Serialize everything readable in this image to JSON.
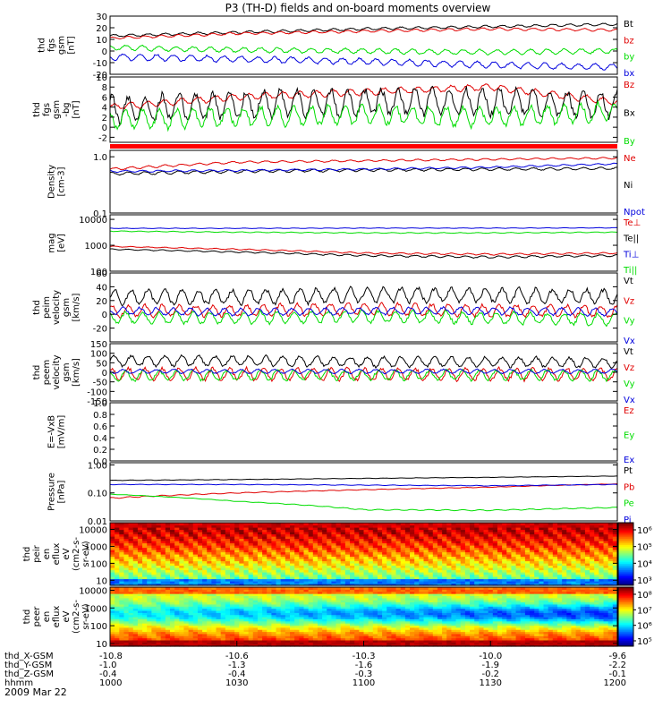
{
  "title": "P3 (TH-D) fields and on-board moments overview",
  "date": "2009 Mar 22",
  "colors": {
    "black": "#000000",
    "red": "#e00000",
    "green": "#00dd00",
    "blue": "#0000dd"
  },
  "chart_data": [
    {
      "type": "line",
      "ylabel": [
        "thd",
        "fgs",
        "gsm",
        "[nT]"
      ],
      "ylim": [
        -20,
        30
      ],
      "ticks": [
        30,
        20,
        10,
        0,
        -10,
        -20
      ],
      "legend_placement": "right",
      "series": [
        {
          "name": "Bt",
          "color": "black",
          "x": [
            1000,
            1030,
            1100,
            1130,
            1200
          ],
          "values": [
            13,
            16,
            19,
            21,
            23
          ],
          "osc": 1
        },
        {
          "name": "bz",
          "color": "red",
          "x": [
            1000,
            1030,
            1100,
            1130,
            1200
          ],
          "values": [
            11,
            15,
            17,
            19,
            18
          ],
          "osc": 1
        },
        {
          "name": "by",
          "color": "green",
          "x": [
            1000,
            1030,
            1100,
            1130,
            1200
          ],
          "values": [
            3,
            1,
            0,
            -1,
            0
          ],
          "osc": 2
        },
        {
          "name": "bx",
          "color": "blue",
          "x": [
            1000,
            1030,
            1100,
            1130,
            1200
          ],
          "values": [
            -5,
            -7,
            -9,
            -12,
            -14
          ],
          "osc": 2.5
        }
      ]
    },
    {
      "type": "line",
      "ylabel": [
        "thd",
        "fgs",
        "gsm",
        "-bg",
        "[nT]"
      ],
      "ylim": [
        -3,
        10
      ],
      "ticks": [
        10,
        8,
        6,
        4,
        2,
        0,
        -2
      ],
      "legend_placement": "right",
      "series": [
        {
          "name": "Bz",
          "color": "red",
          "x": [
            1000,
            1030,
            1100,
            1130,
            1200
          ],
          "values": [
            4,
            6,
            7,
            8,
            5
          ],
          "osc": 0.6
        },
        {
          "name": "Bx",
          "color": "black",
          "x": [
            1000,
            1030,
            1100,
            1130,
            1200
          ],
          "values": [
            3.5,
            4.5,
            5,
            5,
            4.5
          ],
          "osc": 2.5
        },
        {
          "name": "By",
          "color": "green",
          "x": [
            1000,
            1030,
            1100,
            1130,
            1200
          ],
          "values": [
            1.5,
            2,
            2.5,
            2,
            3
          ],
          "osc": 1.8
        }
      ]
    },
    {
      "type": "line",
      "ylabel": [
        "Density",
        "[cm-3]"
      ],
      "scale": "log",
      "ylim": [
        0.1,
        1.3
      ],
      "ticks": [
        1.0,
        0.1
      ],
      "tick_labels": [
        "1.0",
        "0.1"
      ],
      "legend_placement": "right",
      "series": [
        {
          "name": "Ne",
          "color": "red",
          "x": [
            1000,
            1030,
            1100,
            1130,
            1200
          ],
          "values": [
            0.6,
            0.8,
            0.85,
            0.9,
            0.95
          ],
          "osc": 0.03
        },
        {
          "name": "Ni",
          "color": "black",
          "x": [
            1000,
            1030,
            1100,
            1130,
            1200
          ],
          "values": [
            0.5,
            0.55,
            0.58,
            0.6,
            0.62
          ],
          "osc": 0.03
        },
        {
          "name": "Npot",
          "color": "blue",
          "x": [
            1000,
            1030,
            1100,
            1130,
            1200
          ],
          "values": [
            0.55,
            0.57,
            0.6,
            0.65,
            0.75
          ],
          "osc": 0.02
        }
      ]
    },
    {
      "type": "line",
      "ylabel": [
        "mag",
        "[eV]"
      ],
      "scale": "log",
      "ylim": [
        100,
        15000
      ],
      "ticks": [
        10000,
        1000,
        100
      ],
      "tick_labels": [
        "10000",
        "1000",
        "100"
      ],
      "legend_placement": "right",
      "series": [
        {
          "name": "Te⊥",
          "color": "red",
          "x": [
            1000,
            1030,
            1100,
            1130,
            1200
          ],
          "values": [
            900,
            700,
            500,
            450,
            500
          ],
          "osc": 30
        },
        {
          "name": "Te||",
          "color": "black",
          "x": [
            1000,
            1030,
            1100,
            1130,
            1200
          ],
          "values": [
            700,
            550,
            400,
            350,
            400
          ],
          "osc": 30
        },
        {
          "name": "Ti⊥",
          "color": "blue",
          "x": [
            1000,
            1030,
            1100,
            1130,
            1200
          ],
          "values": [
            4500,
            4500,
            4600,
            4600,
            4700
          ],
          "osc": 100
        },
        {
          "name": "Ti||",
          "color": "green",
          "x": [
            1000,
            1030,
            1100,
            1130,
            1200
          ],
          "values": [
            3500,
            3200,
            3000,
            3000,
            3200
          ],
          "osc": 100
        }
      ]
    },
    {
      "type": "line",
      "ylabel": [
        "thd",
        "peim",
        "velocity",
        "gsm",
        "[km/s]"
      ],
      "ylim": [
        -40,
        60
      ],
      "ticks": [
        60,
        40,
        20,
        0,
        -20
      ],
      "legend_placement": "right",
      "series": [
        {
          "name": "Vt",
          "color": "black",
          "x": [
            1000,
            1030,
            1100,
            1130,
            1200
          ],
          "values": [
            25,
            25,
            28,
            28,
            25
          ],
          "osc": 10
        },
        {
          "name": "Vz",
          "color": "red",
          "x": [
            1000,
            1030,
            1100,
            1130,
            1200
          ],
          "values": [
            5,
            5,
            8,
            5,
            5
          ],
          "osc": 8
        },
        {
          "name": "Vy",
          "color": "green",
          "x": [
            1000,
            1030,
            1100,
            1130,
            1200
          ],
          "values": [
            -5,
            -5,
            -3,
            -5,
            -8
          ],
          "osc": 8
        },
        {
          "name": "Vx",
          "color": "blue",
          "x": [
            1000,
            1030,
            1100,
            1130,
            1200
          ],
          "values": [
            5,
            3,
            5,
            5,
            3
          ],
          "osc": 5
        }
      ]
    },
    {
      "type": "line",
      "ylabel": [
        "thd",
        "peem",
        "velocity",
        "gsm",
        "[km/s]"
      ],
      "ylim": [
        -150,
        150
      ],
      "ticks": [
        150,
        100,
        50,
        0,
        -50,
        -100,
        -150
      ],
      "legend_placement": "right",
      "series": [
        {
          "name": "Vt",
          "color": "black",
          "x": [
            1000,
            1030,
            1100,
            1130,
            1200
          ],
          "values": [
            60,
            60,
            55,
            55,
            50
          ],
          "osc": 25
        },
        {
          "name": "Vz",
          "color": "red",
          "x": [
            1000,
            1030,
            1100,
            1130,
            1200
          ],
          "values": [
            -10,
            -10,
            -10,
            -10,
            -10
          ],
          "osc": 30
        },
        {
          "name": "Vy",
          "color": "green",
          "x": [
            1000,
            1030,
            1100,
            1130,
            1200
          ],
          "values": [
            -20,
            -15,
            -15,
            -15,
            -15
          ],
          "osc": 25
        },
        {
          "name": "Vx",
          "color": "blue",
          "x": [
            1000,
            1030,
            1100,
            1130,
            1200
          ],
          "values": [
            5,
            5,
            5,
            5,
            5
          ],
          "osc": 10
        }
      ]
    },
    {
      "type": "line",
      "ylabel": [
        "E=-VxB",
        "[mV/m]"
      ],
      "ylim": [
        0,
        1
      ],
      "ticks": [
        1.0,
        0.8,
        0.6,
        0.4,
        0.2,
        0.0
      ],
      "tick_labels": [
        "1.0",
        "0.8",
        "0.6",
        "0.4",
        "0.2",
        "0.0"
      ],
      "legend_placement": "right",
      "series": [
        {
          "name": "Ez",
          "color": "red",
          "x": [],
          "values": []
        },
        {
          "name": "Ey",
          "color": "green",
          "x": [],
          "values": []
        },
        {
          "name": "Ex",
          "color": "blue",
          "x": [],
          "values": []
        }
      ]
    },
    {
      "type": "line",
      "ylabel": [
        "Pressure",
        "[nPa]"
      ],
      "scale": "log",
      "ylim": [
        0.01,
        1.2
      ],
      "ticks": [
        1.0,
        0.1,
        0.01
      ],
      "tick_labels": [
        "1.00",
        "0.10",
        "0.01"
      ],
      "legend_placement": "right",
      "series": [
        {
          "name": "Pt",
          "color": "black",
          "x": [
            1000,
            1030,
            1100,
            1130,
            1200
          ],
          "values": [
            0.28,
            0.3,
            0.33,
            0.36,
            0.4
          ],
          "osc": 0.005
        },
        {
          "name": "Pb",
          "color": "red",
          "x": [
            1000,
            1030,
            1100,
            1130,
            1200
          ],
          "values": [
            0.065,
            0.1,
            0.13,
            0.16,
            0.21
          ],
          "osc": 0.003
        },
        {
          "name": "Pe",
          "color": "green",
          "x": [
            1000,
            1030,
            1100,
            1130,
            1200
          ],
          "values": [
            0.09,
            0.05,
            0.025,
            0.024,
            0.03
          ],
          "osc": 0.001
        },
        {
          "name": "Pi",
          "color": "blue",
          "x": [
            1000,
            1030,
            1100,
            1130,
            1200
          ],
          "values": [
            0.2,
            0.2,
            0.19,
            0.18,
            0.2
          ],
          "osc": 0.004
        }
      ]
    },
    {
      "type": "heatmap",
      "ylabel": [
        "thd",
        "peir",
        "en",
        "eflux",
        "eV",
        "(cm2-s-",
        "sr-eV)"
      ],
      "scale": "log",
      "ylim": [
        5,
        25000
      ],
      "ticks": [
        10000,
        1000,
        100,
        10
      ],
      "tick_labels": [
        "10000",
        "1000",
        "100",
        "10"
      ],
      "colorbar": {
        "ticks": [
          "10⁶",
          "10⁵",
          "10⁴",
          "10³"
        ],
        "range": [
          2.5,
          6.8
        ]
      },
      "profile": "ion"
    },
    {
      "type": "heatmap",
      "ylabel": [
        "thd",
        "peer",
        "en",
        "eflux",
        "eV",
        "(cm2-s-",
        "sr-eV)"
      ],
      "scale": "log",
      "ylim": [
        7,
        15000
      ],
      "ticks": [
        10000,
        1000,
        100,
        10
      ],
      "tick_labels": [
        "10000",
        "1000",
        "100",
        "10"
      ],
      "colorbar": {
        "ticks": [
          "10⁸",
          "10⁷",
          "10⁶",
          "10⁵"
        ],
        "range": [
          4.8,
          8.3
        ]
      },
      "profile": "electron"
    }
  ],
  "x_axis": {
    "rows": [
      {
        "label": "thd_X-GSM",
        "values": [
          "-10.8",
          "-10.6",
          "-10.3",
          "-10.0",
          "-9.6"
        ]
      },
      {
        "label": "thd_Y-GSM",
        "values": [
          "-1.0",
          "-1.3",
          "-1.6",
          "-1.9",
          "-2.2"
        ]
      },
      {
        "label": "thd_Z-GSM",
        "values": [
          "-0.4",
          "-0.4",
          "-0.3",
          "-0.2",
          "-0.1"
        ]
      },
      {
        "label": "hhmm",
        "values": [
          "1000",
          "1030",
          "1100",
          "1130",
          "1200"
        ]
      }
    ]
  }
}
